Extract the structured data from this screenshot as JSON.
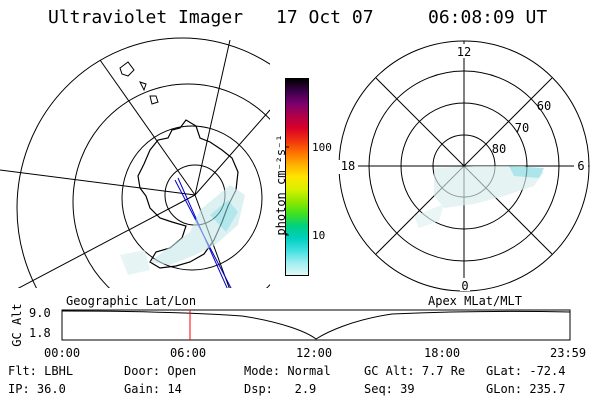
{
  "header": {
    "title": "Ultraviolet Imager",
    "date": "17 Oct 07",
    "time": "06:08:09 UT"
  },
  "geo_panel": {
    "caption": "Geographic Lat/Lon"
  },
  "colorbar": {
    "label": "photon cm⁻²s⁻¹",
    "ticks": [
      "100",
      "10"
    ],
    "colors": [
      "#000000",
      "#3a004a",
      "#7a006e",
      "#b0004a",
      "#d80028",
      "#f03010",
      "#ff7000",
      "#ffb000",
      "#ffe400",
      "#d8f000",
      "#90e800",
      "#40e020",
      "#00d080",
      "#00d0c0",
      "#40e0e0",
      "#a0eef0",
      "#e0f8f8"
    ]
  },
  "polar_panel": {
    "caption": "Apex MLat/MLT",
    "mlt_labels": [
      "12",
      "18",
      "6",
      "0"
    ],
    "lat_labels": [
      "60",
      "70",
      "80"
    ]
  },
  "altitude_plot": {
    "ylabel": "GC Alt",
    "yticks": [
      "9.0",
      "1.8"
    ],
    "xticks": [
      "00:00",
      "06:00",
      "12:00",
      "18:00",
      "23:59"
    ],
    "marker_color": "#ff0000"
  },
  "info": {
    "flt_label": "Flt:",
    "flt_value": "LBHL",
    "ip_label": "IP:",
    "ip_value": "36.0",
    "door_label": "Door:",
    "door_value": "Open",
    "gain_label": "Gain:",
    "gain_value": "14",
    "mode_label": "Mode:",
    "mode_value": "Normal",
    "dsp_label": "Dsp:",
    "dsp_value": "2.9",
    "gcalt_label": "GC Alt:",
    "gcalt_value": "7.7 Re",
    "seq_label": "Seq:",
    "seq_value": "39",
    "glat_label": "GLat:",
    "glat_value": "-72.4",
    "glon_label": "GLon:",
    "glon_value": "235.7"
  }
}
